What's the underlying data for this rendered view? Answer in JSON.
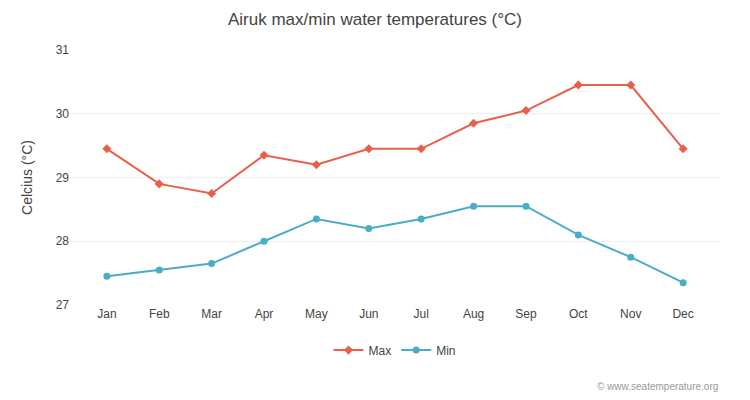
{
  "chart_data": {
    "type": "line",
    "title": "Airuk max/min water temperatures (°C)",
    "y_label": "Celcius (°C)",
    "categories": [
      "Jan",
      "Feb",
      "Mar",
      "Apr",
      "May",
      "Jun",
      "Jul",
      "Aug",
      "Sep",
      "Oct",
      "Nov",
      "Dec"
    ],
    "series": [
      {
        "name": "Max",
        "color": "#e8604c",
        "marker": "diamond",
        "values": [
          29.45,
          28.9,
          28.75,
          29.35,
          29.2,
          29.45,
          29.45,
          29.85,
          30.05,
          30.45,
          30.45,
          29.45
        ]
      },
      {
        "name": "Min",
        "color": "#4bacc6",
        "marker": "circle",
        "values": [
          27.45,
          27.55,
          27.65,
          28.0,
          28.35,
          28.2,
          28.35,
          28.55,
          28.55,
          28.1,
          27.75,
          27.35
        ]
      }
    ],
    "ylim": [
      27.0,
      31.0
    ],
    "yticks": [
      27,
      28,
      29,
      30,
      31
    ],
    "grid": true,
    "legend": "bottom",
    "annotations": [
      "© www.seatemperature.org"
    ]
  }
}
